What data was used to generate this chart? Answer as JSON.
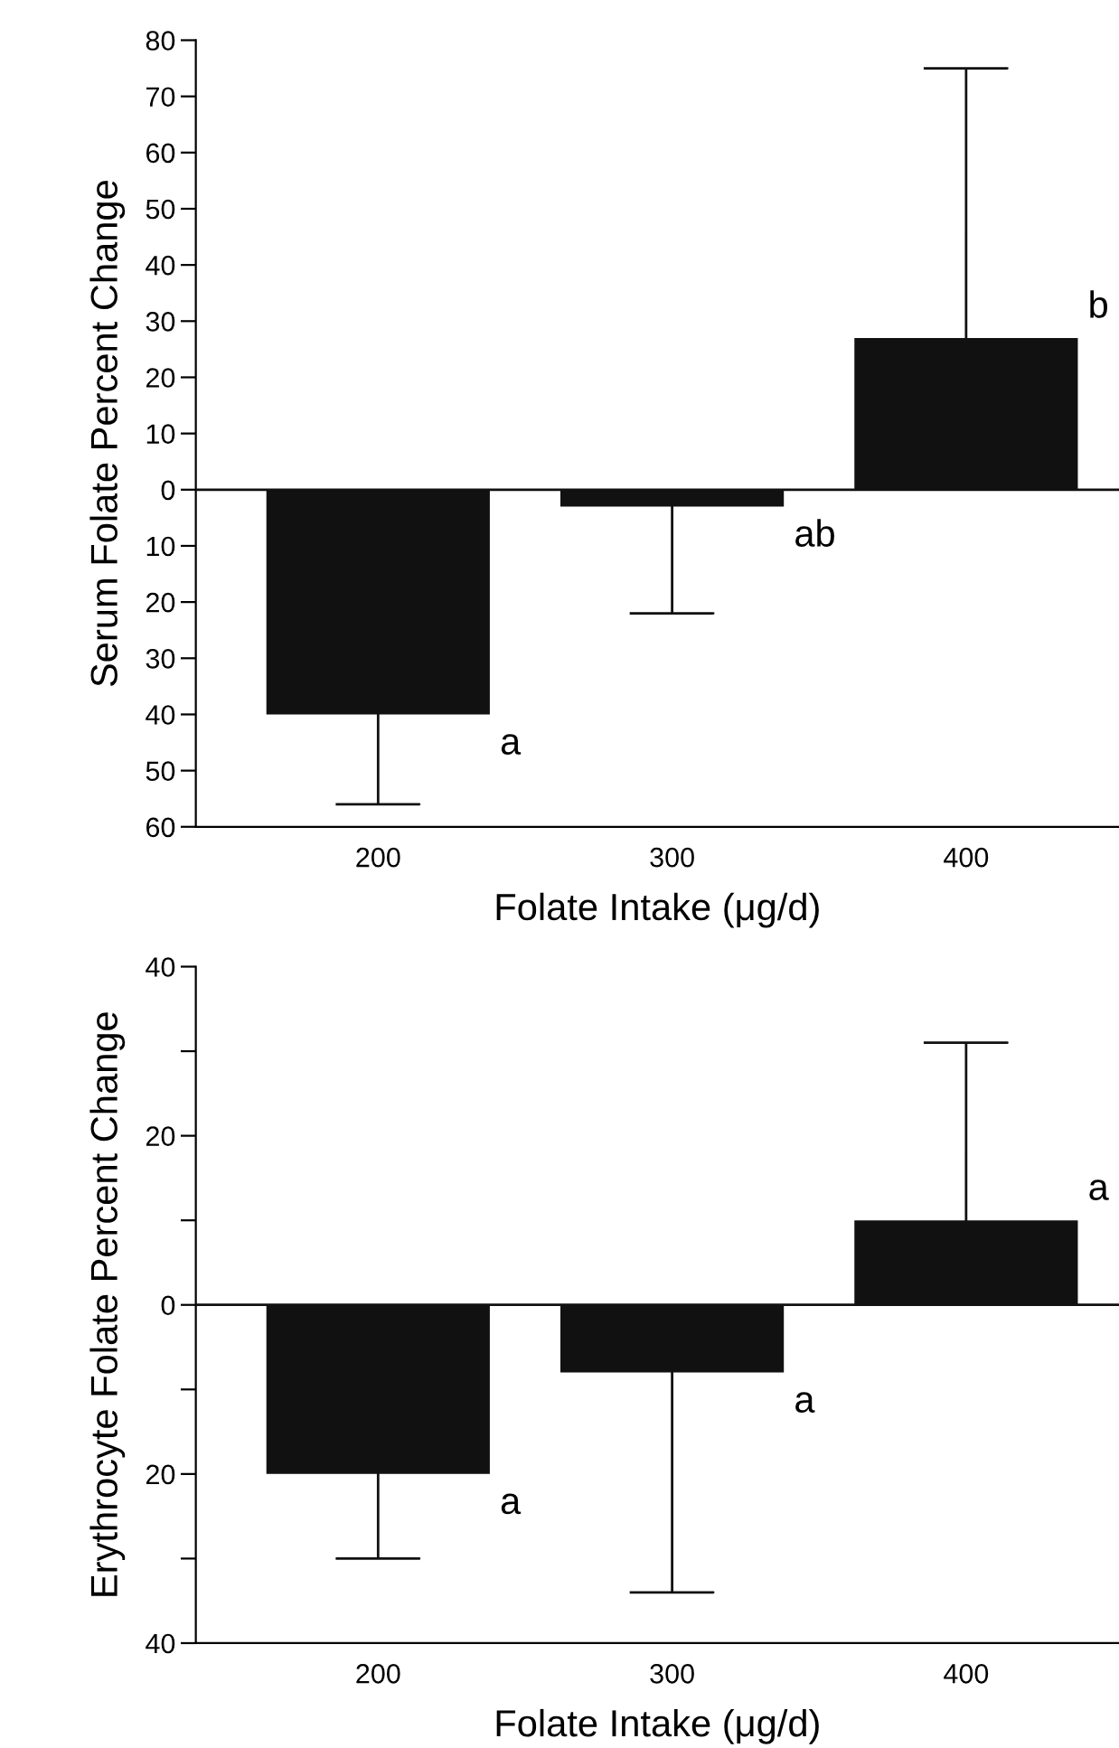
{
  "chart_data": [
    {
      "type": "bar",
      "categories": [
        "200",
        "300",
        "400"
      ],
      "values": [
        -40,
        -3,
        27
      ],
      "errors": [
        [
          -56,
          -40
        ],
        [
          -22,
          -3
        ],
        [
          27,
          75
        ]
      ],
      "color": "#111111",
      "xlabel": "Folate Intake (μg/d)",
      "ylabel": "Serum Folate Percent Change",
      "ylim": [
        -60,
        80
      ],
      "yticks": [
        {
          "value": -60,
          "label": "60"
        },
        {
          "value": -50,
          "label": "50"
        },
        {
          "value": -40,
          "label": "40"
        },
        {
          "value": -30,
          "label": "30"
        },
        {
          "value": -20,
          "label": "20"
        },
        {
          "value": -10,
          "label": "10"
        },
        0,
        10,
        20,
        30,
        40,
        50,
        60,
        70,
        80
      ],
      "ref_lines": [
        {
          "axis": "y",
          "value": 0
        }
      ],
      "annotations": [
        "a",
        "ab",
        "b"
      ]
    },
    {
      "type": "bar",
      "categories": [
        "200",
        "300",
        "400"
      ],
      "values": [
        -20,
        -8,
        10
      ],
      "errors": [
        [
          -30,
          -20
        ],
        [
          -34,
          -8
        ],
        [
          10,
          31
        ]
      ],
      "color": "#111111",
      "xlabel": "Folate Intake (μg/d)",
      "ylabel": "Erythrocyte Folate Percent Change",
      "ylim": [
        -40,
        40
      ],
      "yticks": [
        {
          "value": -40,
          "label": "40"
        },
        {
          "value": -30,
          "label": null
        },
        {
          "value": -20,
          "label": "20"
        },
        {
          "value": -10,
          "label": null
        },
        0,
        {
          "value": 10,
          "label": null
        },
        20,
        {
          "value": 30,
          "label": null
        },
        40
      ],
      "ref_lines": [
        {
          "axis": "y",
          "value": 0
        }
      ],
      "annotations": [
        "a",
        "a",
        "a"
      ]
    }
  ]
}
